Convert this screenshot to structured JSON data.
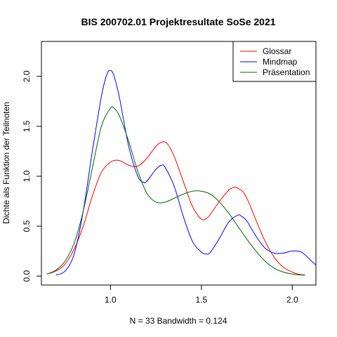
{
  "chart_data": {
    "type": "line",
    "title": "BIS 200702.01 Projektresultate SoSe 2021",
    "xlabel": "N = 33   Bandwidth = 0.124",
    "ylabel": "Dichte als Funktion der Teilnoten",
    "xlim": [
      0.62,
      2.13
    ],
    "ylim": [
      -0.09,
      2.35
    ],
    "x_ticks": [
      1.0,
      1.5,
      2.0
    ],
    "x_tick_labels": [
      "1.0",
      "1.5",
      "2.0"
    ],
    "y_ticks": [
      0.0,
      0.5,
      1.0,
      1.5,
      2.0
    ],
    "y_tick_labels": [
      "0.0",
      "0.5",
      "1.0",
      "1.5",
      "2.0"
    ],
    "grid": false,
    "legend_position": "top-right",
    "series": [
      {
        "name": "Glossar",
        "color": "#ff0000",
        "x": [
          0.65,
          0.7,
          0.75,
          0.8,
          0.85,
          0.9,
          0.95,
          1.0,
          1.03,
          1.06,
          1.1,
          1.15,
          1.2,
          1.25,
          1.28,
          1.31,
          1.35,
          1.4,
          1.45,
          1.5,
          1.53,
          1.55,
          1.6,
          1.65,
          1.68,
          1.7,
          1.73,
          1.76,
          1.8,
          1.85,
          1.9,
          1.95,
          2.0,
          2.03,
          2.07
        ],
        "y": [
          0.02,
          0.05,
          0.12,
          0.27,
          0.5,
          0.8,
          1.04,
          1.14,
          1.16,
          1.15,
          1.11,
          1.1,
          1.18,
          1.3,
          1.34,
          1.33,
          1.2,
          0.95,
          0.7,
          0.57,
          0.58,
          0.62,
          0.75,
          0.86,
          0.89,
          0.88,
          0.84,
          0.74,
          0.56,
          0.35,
          0.19,
          0.09,
          0.04,
          0.02,
          0.01
        ]
      },
      {
        "name": "Mindmap",
        "color": "#0000ff",
        "x": [
          0.7,
          0.75,
          0.8,
          0.85,
          0.9,
          0.95,
          0.98,
          1.0,
          1.02,
          1.05,
          1.1,
          1.15,
          1.18,
          1.2,
          1.25,
          1.28,
          1.3,
          1.35,
          1.4,
          1.45,
          1.5,
          1.53,
          1.55,
          1.6,
          1.65,
          1.7,
          1.72,
          1.75,
          1.8,
          1.85,
          1.9,
          1.95,
          2.0,
          2.05,
          2.1,
          2.13
        ],
        "y": [
          0.01,
          0.05,
          0.22,
          0.65,
          1.25,
          1.8,
          2.02,
          2.06,
          2.0,
          1.78,
          1.3,
          1.0,
          0.94,
          0.95,
          1.07,
          1.11,
          1.09,
          0.9,
          0.6,
          0.35,
          0.24,
          0.22,
          0.24,
          0.38,
          0.54,
          0.61,
          0.6,
          0.55,
          0.4,
          0.28,
          0.23,
          0.23,
          0.25,
          0.24,
          0.16,
          0.11
        ]
      },
      {
        "name": "Präsentation",
        "color": "#006400",
        "x": [
          0.65,
          0.7,
          0.75,
          0.8,
          0.85,
          0.9,
          0.95,
          1.0,
          1.02,
          1.05,
          1.1,
          1.15,
          1.2,
          1.25,
          1.3,
          1.35,
          1.4,
          1.45,
          1.5,
          1.55,
          1.6,
          1.65,
          1.7,
          1.75,
          1.8,
          1.85,
          1.9,
          1.95,
          2.0,
          2.05,
          2.07
        ],
        "y": [
          0.02,
          0.06,
          0.15,
          0.33,
          0.65,
          1.08,
          1.5,
          1.68,
          1.68,
          1.6,
          1.35,
          1.05,
          0.83,
          0.74,
          0.74,
          0.78,
          0.82,
          0.85,
          0.85,
          0.82,
          0.74,
          0.63,
          0.5,
          0.37,
          0.25,
          0.15,
          0.08,
          0.04,
          0.02,
          0.01,
          0.01
        ]
      }
    ]
  }
}
